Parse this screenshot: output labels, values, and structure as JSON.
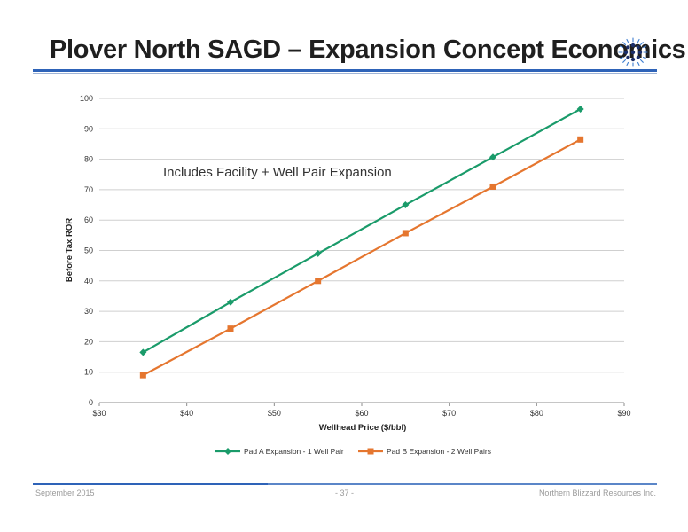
{
  "slide": {
    "title": "Plover North SAGD – Expansion Concept Economics",
    "logo_icon": "snowflake-burst-icon"
  },
  "chart_data": {
    "type": "line",
    "title": "",
    "annotation": "Includes Facility + Well Pair Expansion",
    "xlabel": "Wellhead Price ($/bbl)",
    "ylabel": "Before Tax ROR",
    "xlim": [
      30,
      90
    ],
    "ylim": [
      0,
      100
    ],
    "x_ticks": [
      "$30",
      "$40",
      "$50",
      "$60",
      "$70",
      "$80",
      "$90"
    ],
    "y_ticks": [
      "0",
      "10",
      "20",
      "30",
      "40",
      "50",
      "60",
      "70",
      "80",
      "90",
      "100"
    ],
    "grid": true,
    "legend_position": "bottom",
    "x": [
      35,
      45,
      55,
      65,
      75,
      85
    ],
    "series": [
      {
        "name": "Pad A Expansion - 1 Well Pair",
        "values": [
          16.5,
          33,
          49,
          65,
          80.7,
          96.5
        ],
        "color": "#1a9b6a",
        "marker": "diamond"
      },
      {
        "name": "Pad B Expansion - 2 Well Pairs",
        "values": [
          9,
          24.3,
          40,
          55.7,
          71,
          86.5
        ],
        "color": "#e5762f",
        "marker": "square"
      }
    ]
  },
  "footer": {
    "date": "September 2015",
    "page": "- 37 -",
    "company": "Northern Blizzard Resources Inc."
  },
  "colors": {
    "title_rule": "#2e63b8",
    "grid": "#cfcfcf"
  }
}
